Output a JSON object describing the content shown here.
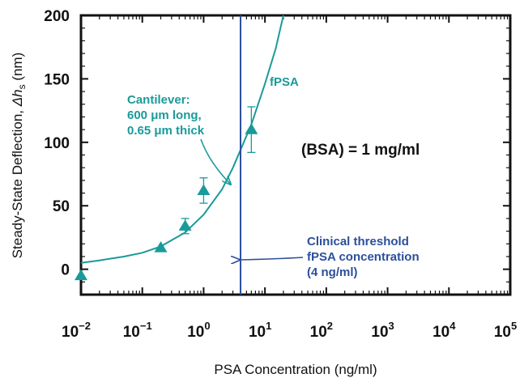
{
  "chart_data": {
    "type": "scatter",
    "xlabel": "PSA Concentration (ng/ml)",
    "ylabel_prefix": "Steady-State Deflection, ",
    "ylabel_symbol": "Δh",
    "ylabel_sub": "s",
    "ylabel_suffix": " (nm)",
    "xscale": "log",
    "xlim": [
      0.01,
      100000
    ],
    "ylim": [
      -20,
      200
    ],
    "yticks": [
      0,
      50,
      100,
      150,
      200
    ],
    "xtick_labels": [
      {
        "exp": -2,
        "base": "10",
        "sup": "−2"
      },
      {
        "exp": -1,
        "base": "10",
        "sup": "−1"
      },
      {
        "exp": 0,
        "base": "10",
        "sup": "0"
      },
      {
        "exp": 1,
        "base": "10",
        "sup": "1"
      },
      {
        "exp": 2,
        "base": "10",
        "sup": "2"
      },
      {
        "exp": 3,
        "base": "10",
        "sup": "3"
      },
      {
        "exp": 4,
        "base": "10",
        "sup": "4"
      },
      {
        "exp": 5,
        "base": "10",
        "sup": "5"
      }
    ],
    "series": [
      {
        "name": "fPSA",
        "color": "#1a9a9a",
        "points": [
          {
            "x": 0.01,
            "y": -5,
            "err": 0
          },
          {
            "x": 0.2,
            "y": 17,
            "err": 0
          },
          {
            "x": 0.5,
            "y": 34,
            "err": 6
          },
          {
            "x": 1.0,
            "y": 62,
            "err": 10
          },
          {
            "x": 6.0,
            "y": 110,
            "err": 18
          }
        ]
      }
    ],
    "fit_curve": [
      {
        "x": 0.01,
        "y": 5
      },
      {
        "x": 0.02,
        "y": 7
      },
      {
        "x": 0.05,
        "y": 10
      },
      {
        "x": 0.1,
        "y": 13
      },
      {
        "x": 0.2,
        "y": 18
      },
      {
        "x": 0.5,
        "y": 29
      },
      {
        "x": 1.0,
        "y": 43
      },
      {
        "x": 2.0,
        "y": 63
      },
      {
        "x": 3.0,
        "y": 80
      },
      {
        "x": 4.0,
        "y": 94
      },
      {
        "x": 6.0,
        "y": 114
      },
      {
        "x": 10,
        "y": 146
      },
      {
        "x": 15,
        "y": 174
      },
      {
        "x": 20,
        "y": 200
      }
    ],
    "threshold_x": 4,
    "annotations": {
      "fpsa_label": "fPSA",
      "cantilever_lines": [
        "Cantilever:",
        "600 μm long,",
        "0.65 μm thick"
      ],
      "bsa": "(BSA) = 1 mg/ml",
      "clinical_lines": [
        "Clinical threshold",
        "fPSA concentration",
        "(4 ng/ml)"
      ]
    },
    "colors": {
      "data": "#1a9a9a",
      "threshold": "#2c4f9a",
      "axis": "#111111"
    }
  }
}
